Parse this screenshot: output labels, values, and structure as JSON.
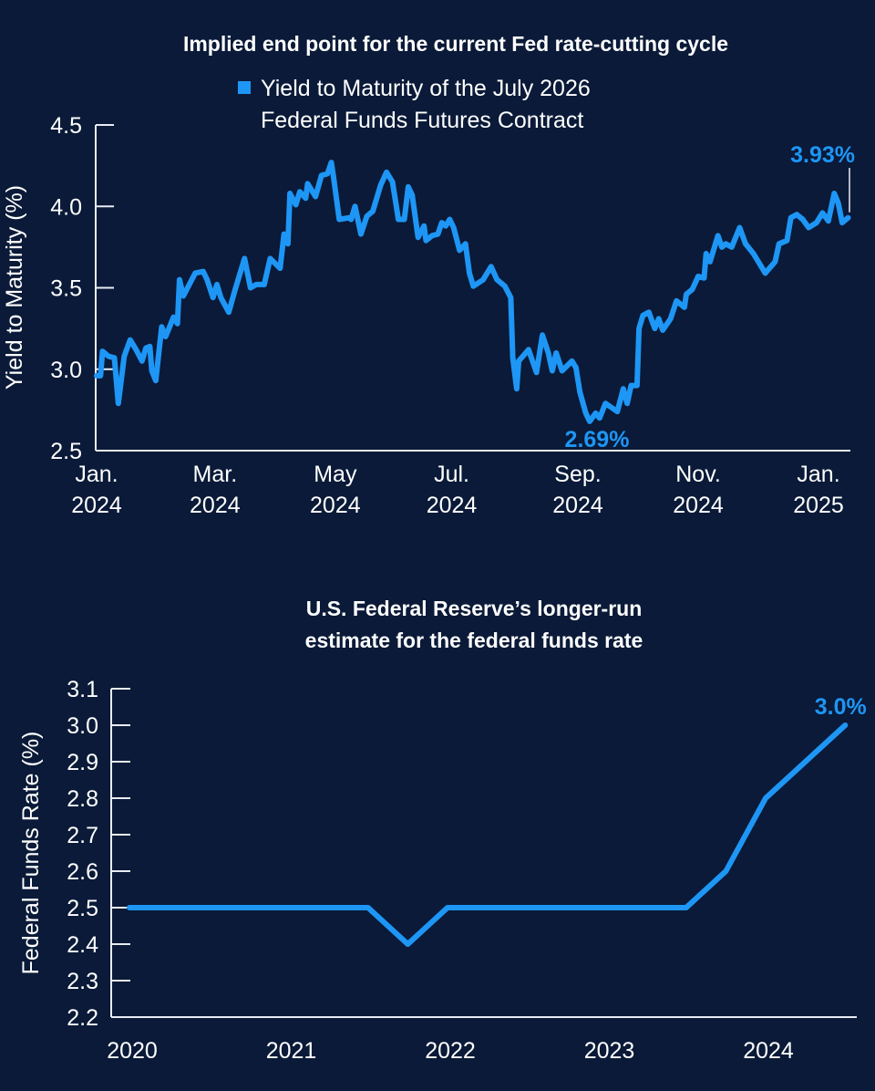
{
  "colors": {
    "background": "#0a1a38",
    "series": "#1e96f5",
    "text": "#ffffff",
    "axis": "#e8ecf2"
  },
  "chart_data": [
    {
      "type": "line",
      "title": "Implied end point for the current Fed rate-cutting cycle",
      "legend": [
        "Yield to Maturity of the July 2026",
        "Federal Funds Futures Contract"
      ],
      "legend_placement": "top-center",
      "ylabel": "Yield to Maturity (%)",
      "xlabel": "",
      "x_unit": "days from Jan. 1, 2024",
      "ylim": [
        2.5,
        4.5
      ],
      "xlim": [
        0,
        382
      ],
      "yticks": [
        "2.5",
        "3.0",
        "3.5",
        "4.0",
        "4.5"
      ],
      "ytick_values": [
        2.5,
        3.0,
        3.5,
        4.0,
        4.5
      ],
      "xticks": [
        {
          "value": 0,
          "line1": "Jan.",
          "line2": "2024"
        },
        {
          "value": 60,
          "line1": "Mar.",
          "line2": "2024"
        },
        {
          "value": 121,
          "line1": "May",
          "line2": "2024"
        },
        {
          "value": 180,
          "line1": "Jul.",
          "line2": "2024"
        },
        {
          "value": 244,
          "line1": "Sep.",
          "line2": "2024"
        },
        {
          "value": 305,
          "line1": "Nov.",
          "line2": "2024"
        },
        {
          "value": 366,
          "line1": "Jan.",
          "line2": "2025"
        }
      ],
      "annotations": [
        {
          "text": "2.69%",
          "x": 250,
          "y": 2.69
        },
        {
          "text": "3.93%",
          "x": 381,
          "y": 3.93
        }
      ],
      "series": [
        {
          "name": "Yield to Maturity of the July 2026 Federal Funds Futures Contract",
          "x": [
            0,
            2,
            3,
            6,
            9,
            11,
            14,
            17,
            20,
            23,
            25,
            27,
            28,
            30,
            33,
            35,
            39,
            41,
            42,
            44,
            47,
            50,
            54,
            56,
            59,
            61,
            63,
            67,
            70,
            75,
            78,
            81,
            85,
            88,
            93,
            95,
            97,
            98,
            101,
            103,
            106,
            107,
            111,
            114,
            117,
            119,
            120,
            123,
            128,
            129,
            131,
            134,
            137,
            140,
            144,
            147,
            150,
            153,
            156,
            158,
            160,
            163,
            166,
            167,
            170,
            173,
            175,
            177,
            179,
            181,
            184,
            187,
            189,
            191,
            196,
            200,
            203,
            207,
            210,
            211,
            213,
            214,
            219,
            223,
            226,
            229,
            231,
            233,
            236,
            241,
            243,
            245,
            248,
            250,
            253,
            255,
            258,
            264,
            267,
            269,
            271,
            274,
            275,
            277,
            280,
            283,
            285,
            287,
            291,
            294,
            298,
            299,
            302,
            305,
            308,
            309,
            311,
            315,
            317,
            319,
            322,
            326,
            329,
            333,
            337,
            339,
            344,
            346,
            350,
            352,
            355,
            358,
            361,
            365,
            368,
            371,
            374,
            376,
            378,
            381
          ],
          "y": [
            2.96,
            2.96,
            3.11,
            3.08,
            3.07,
            2.79,
            3.08,
            3.18,
            3.12,
            3.05,
            3.13,
            3.14,
            2.99,
            2.93,
            3.26,
            3.2,
            3.32,
            3.28,
            3.55,
            3.45,
            3.52,
            3.59,
            3.6,
            3.55,
            3.44,
            3.52,
            3.44,
            3.35,
            3.48,
            3.68,
            3.5,
            3.52,
            3.52,
            3.68,
            3.62,
            3.83,
            3.77,
            4.08,
            4.01,
            4.09,
            4.05,
            4.14,
            4.06,
            4.19,
            4.2,
            4.27,
            4.19,
            3.92,
            3.93,
            3.92,
            4.0,
            3.83,
            3.94,
            3.97,
            4.13,
            4.21,
            4.15,
            3.92,
            3.92,
            4.12,
            4.07,
            3.81,
            3.88,
            3.79,
            3.82,
            3.83,
            3.9,
            3.88,
            3.92,
            3.87,
            3.73,
            3.77,
            3.59,
            3.51,
            3.55,
            3.63,
            3.55,
            3.51,
            3.44,
            3.07,
            2.88,
            3.05,
            3.12,
            2.98,
            3.21,
            3.1,
            2.99,
            3.1,
            2.99,
            3.05,
            3.01,
            2.86,
            2.73,
            2.68,
            2.73,
            2.7,
            2.79,
            2.74,
            2.88,
            2.79,
            2.9,
            2.9,
            3.25,
            3.33,
            3.35,
            3.25,
            3.31,
            3.24,
            3.31,
            3.42,
            3.38,
            3.46,
            3.49,
            3.57,
            3.56,
            3.71,
            3.66,
            3.82,
            3.75,
            3.77,
            3.75,
            3.87,
            3.77,
            3.71,
            3.63,
            3.59,
            3.66,
            3.77,
            3.79,
            3.93,
            3.95,
            3.92,
            3.87,
            3.9,
            3.96,
            3.91,
            4.08,
            4.02,
            3.9,
            3.93
          ]
        }
      ]
    },
    {
      "type": "line",
      "title": [
        "U.S. Federal Reserve’s longer-run",
        "estimate for the federal funds rate"
      ],
      "ylabel": "Federal Funds Rate (%)",
      "xlabel": "",
      "ylim": [
        2.2,
        3.1
      ],
      "xlim": [
        2020,
        2024.5
      ],
      "yticks": [
        "2.2",
        "2.3",
        "2.4",
        "2.5",
        "2.6",
        "2.7",
        "2.8",
        "2.9",
        "3.0",
        "3.1"
      ],
      "ytick_values": [
        2.2,
        2.3,
        2.4,
        2.5,
        2.6,
        2.7,
        2.8,
        2.9,
        3.0,
        3.1
      ],
      "xticks": [
        "2020",
        "2021",
        "2022",
        "2023",
        "2024"
      ],
      "xtick_values": [
        2020,
        2021,
        2022,
        2023,
        2024
      ],
      "annotations": [
        {
          "text": "3.0%",
          "x": 2024.5,
          "y": 3.0
        }
      ],
      "series": [
        {
          "name": "Longer-run federal funds rate estimate",
          "x": [
            2020,
            2021.5,
            2021.75,
            2022,
            2023.5,
            2023.75,
            2024,
            2024.5
          ],
          "y": [
            2.5,
            2.5,
            2.4,
            2.5,
            2.5,
            2.6,
            2.8,
            3.0
          ]
        }
      ]
    }
  ]
}
